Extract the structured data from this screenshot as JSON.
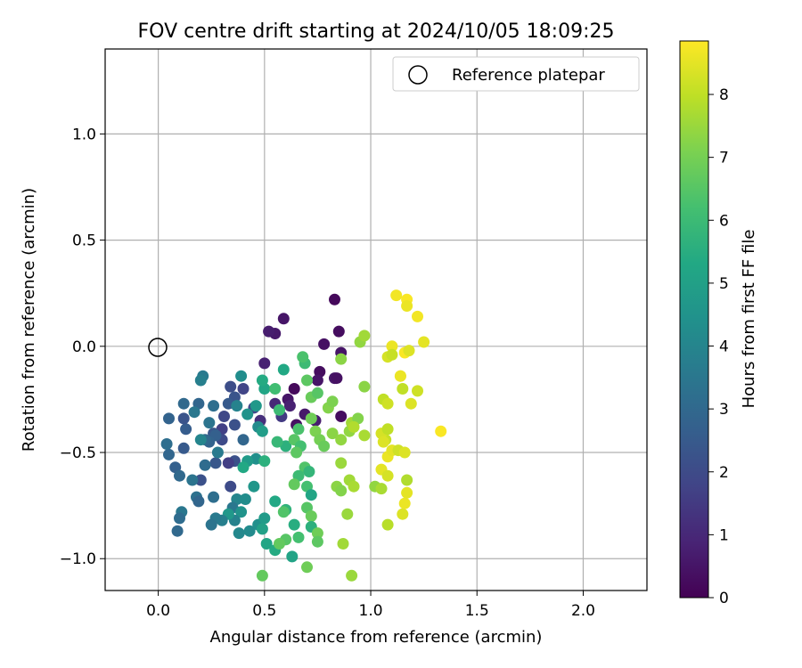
{
  "chart_data": {
    "type": "scatter",
    "title": "FOV centre drift starting at 2024/10/05 18:09:25",
    "xlabel": "Angular distance from reference (arcmin)",
    "ylabel": "Rotation from reference (arcmin)",
    "xlim": [
      -0.25,
      2.3
    ],
    "ylim": [
      -1.15,
      1.4
    ],
    "xticks": [
      0.0,
      0.5,
      1.0,
      1.5,
      2.0
    ],
    "xtick_labels": [
      "0.0",
      "0.5",
      "1.0",
      "1.5",
      "2.0"
    ],
    "yticks": [
      -1.0,
      -0.5,
      0.0,
      0.5,
      1.0
    ],
    "ytick_labels": [
      "−1.0",
      "−0.5",
      "0.0",
      "0.5",
      "1.0"
    ],
    "grid": true,
    "legend": {
      "position": "top-right",
      "label": "Reference platepar"
    },
    "reference_point": {
      "x": 0.0,
      "y": 0.0
    },
    "colorbar": {
      "label": "Hours from first FF file",
      "range": [
        0,
        8.85
      ],
      "ticks": [
        0,
        1,
        2,
        3,
        4,
        5,
        6,
        7,
        8
      ],
      "tick_labels": [
        "0",
        "1",
        "2",
        "3",
        "4",
        "5",
        "6",
        "7",
        "8"
      ],
      "colormap": "viridis"
    },
    "points": [
      [
        0.83,
        0.22,
        0.2
      ],
      [
        0.85,
        0.07,
        0.3
      ],
      [
        0.59,
        0.13,
        0.5
      ],
      [
        0.55,
        0.06,
        0.6
      ],
      [
        0.52,
        0.07,
        0.7
      ],
      [
        0.78,
        0.01,
        0.4
      ],
      [
        0.86,
        -0.03,
        0.5
      ],
      [
        0.5,
        -0.08,
        0.8
      ],
      [
        0.76,
        -0.12,
        0.3
      ],
      [
        0.75,
        -0.16,
        0.5
      ],
      [
        0.83,
        -0.15,
        0.6
      ],
      [
        0.84,
        -0.15,
        0.4
      ],
      [
        0.64,
        -0.2,
        0.2
      ],
      [
        0.61,
        -0.25,
        0.5
      ],
      [
        0.62,
        -0.28,
        0.8
      ],
      [
        0.69,
        -0.32,
        0.6
      ],
      [
        0.86,
        -0.33,
        0.3
      ],
      [
        0.65,
        -0.37,
        0.4
      ],
      [
        0.74,
        -0.35,
        0.7
      ],
      [
        0.58,
        -0.33,
        1.5
      ],
      [
        0.48,
        -0.35,
        1.2
      ],
      [
        0.55,
        -0.27,
        1.0
      ],
      [
        0.45,
        -0.29,
        1.9
      ],
      [
        0.4,
        -0.2,
        1.8
      ],
      [
        0.34,
        -0.19,
        2.1
      ],
      [
        0.36,
        -0.24,
        2.3
      ],
      [
        0.33,
        -0.27,
        2.5
      ],
      [
        0.31,
        -0.33,
        1.9
      ],
      [
        0.36,
        -0.37,
        2.2
      ],
      [
        0.3,
        -0.39,
        1.7
      ],
      [
        0.26,
        -0.41,
        2.4
      ],
      [
        0.3,
        -0.44,
        2.0
      ],
      [
        0.27,
        -0.42,
        2.7
      ],
      [
        0.24,
        -0.45,
        2.8
      ],
      [
        0.4,
        -0.44,
        2.9
      ],
      [
        0.36,
        -0.54,
        2.2
      ],
      [
        0.33,
        -0.55,
        1.6
      ],
      [
        0.27,
        -0.55,
        2.4
      ],
      [
        0.22,
        -0.56,
        3.1
      ],
      [
        0.2,
        -0.63,
        2.2
      ],
      [
        0.34,
        -0.66,
        2.0
      ],
      [
        0.16,
        -0.63,
        3.4
      ],
      [
        0.08,
        -0.57,
        2.7
      ],
      [
        0.1,
        -0.61,
        3.0
      ],
      [
        0.05,
        -0.51,
        2.9
      ],
      [
        0.12,
        -0.48,
        2.5
      ],
      [
        0.04,
        -0.46,
        3.2
      ],
      [
        0.13,
        -0.39,
        2.6
      ],
      [
        0.12,
        -0.34,
        2.3
      ],
      [
        0.05,
        -0.34,
        2.8
      ],
      [
        0.12,
        -0.27,
        3.0
      ],
      [
        0.19,
        -0.27,
        2.9
      ],
      [
        0.21,
        -0.14,
        3.6
      ],
      [
        0.2,
        -0.16,
        3.8
      ],
      [
        0.26,
        -0.28,
        3.2
      ],
      [
        0.24,
        -0.36,
        3.4
      ],
      [
        0.22,
        -0.44,
        3.0
      ],
      [
        0.28,
        -0.5,
        3.6
      ],
      [
        0.2,
        -0.44,
        4.0
      ],
      [
        0.17,
        -0.31,
        3.5
      ],
      [
        0.39,
        -0.14,
        4.3
      ],
      [
        0.37,
        -0.28,
        3.9
      ],
      [
        0.42,
        -0.32,
        4.5
      ],
      [
        0.46,
        -0.28,
        4.7
      ],
      [
        0.5,
        -0.2,
        5.2
      ],
      [
        0.49,
        -0.16,
        5.4
      ],
      [
        0.47,
        -0.38,
        4.2
      ],
      [
        0.49,
        -0.4,
        4.9
      ],
      [
        0.46,
        -0.53,
        4.4
      ],
      [
        0.42,
        -0.54,
        4.8
      ],
      [
        0.4,
        -0.57,
        5.3
      ],
      [
        0.5,
        -0.54,
        5.6
      ],
      [
        0.45,
        -0.66,
        4.6
      ],
      [
        0.37,
        -0.72,
        4.0
      ],
      [
        0.35,
        -0.76,
        3.5
      ],
      [
        0.41,
        -0.72,
        4.3
      ],
      [
        0.39,
        -0.78,
        4.5
      ],
      [
        0.36,
        -0.82,
        3.9
      ],
      [
        0.33,
        -0.79,
        4.7
      ],
      [
        0.3,
        -0.82,
        3.8
      ],
      [
        0.27,
        -0.81,
        3.6
      ],
      [
        0.25,
        -0.84,
        3.4
      ],
      [
        0.26,
        -0.71,
        3.2
      ],
      [
        0.18,
        -0.71,
        3.3
      ],
      [
        0.19,
        -0.73,
        2.9
      ],
      [
        0.11,
        -0.78,
        3.5
      ],
      [
        0.1,
        -0.81,
        3.1
      ],
      [
        0.09,
        -0.87,
        3.0
      ],
      [
        0.38,
        -0.88,
        4.1
      ],
      [
        0.43,
        -0.87,
        4.2
      ],
      [
        0.47,
        -0.84,
        4.4
      ],
      [
        0.5,
        -0.81,
        4.8
      ],
      [
        0.49,
        -0.86,
        5.0
      ],
      [
        0.51,
        -0.93,
        5.2
      ],
      [
        0.55,
        -0.96,
        5.4
      ],
      [
        0.63,
        -0.99,
        5.1
      ],
      [
        0.55,
        -0.73,
        5.3
      ],
      [
        0.6,
        -0.77,
        5.7
      ],
      [
        0.64,
        -0.84,
        5.5
      ],
      [
        0.6,
        -0.47,
        5.6
      ],
      [
        0.56,
        -0.45,
        5.9
      ],
      [
        0.57,
        -0.3,
        6.0
      ],
      [
        0.59,
        -0.11,
        5.3
      ],
      [
        0.55,
        -0.2,
        6.1
      ],
      [
        0.66,
        -0.39,
        6.3
      ],
      [
        0.64,
        -0.44,
        6.5
      ],
      [
        0.67,
        -0.47,
        6.2
      ],
      [
        0.65,
        -0.5,
        6.6
      ],
      [
        0.69,
        -0.57,
        6.4
      ],
      [
        0.71,
        -0.59,
        5.8
      ],
      [
        0.66,
        -0.61,
        6.0
      ],
      [
        0.64,
        -0.65,
        6.7
      ],
      [
        0.7,
        -0.66,
        6.2
      ],
      [
        0.72,
        -0.7,
        5.2
      ],
      [
        0.7,
        -0.76,
        6.5
      ],
      [
        0.72,
        -0.8,
        6.8
      ],
      [
        0.72,
        -0.85,
        5.6
      ],
      [
        0.75,
        -0.88,
        6.9
      ],
      [
        0.75,
        -0.92,
        6.6
      ],
      [
        0.6,
        -0.91,
        6.5
      ],
      [
        0.57,
        -0.93,
        6.7
      ],
      [
        0.66,
        -0.9,
        6.2
      ],
      [
        0.59,
        -0.78,
        6.4
      ],
      [
        0.7,
        -1.04,
        6.9
      ],
      [
        0.49,
        -1.08,
        6.7
      ],
      [
        0.69,
        -0.08,
        6.0
      ],
      [
        0.68,
        -0.05,
        6.3
      ],
      [
        0.7,
        -0.16,
        6.6
      ],
      [
        0.72,
        -0.24,
        6.8
      ],
      [
        0.75,
        -0.22,
        6.5
      ],
      [
        0.72,
        -0.34,
        6.9
      ],
      [
        0.74,
        -0.4,
        7.1
      ],
      [
        0.76,
        -0.44,
        7.0
      ],
      [
        0.78,
        -0.47,
        6.8
      ],
      [
        0.82,
        -0.41,
        7.3
      ],
      [
        0.8,
        -0.29,
        7.2
      ],
      [
        0.82,
        -0.26,
        7.1
      ],
      [
        0.86,
        -0.44,
        7.4
      ],
      [
        0.86,
        -0.55,
        7.5
      ],
      [
        0.84,
        -0.66,
        7.3
      ],
      [
        0.86,
        -0.68,
        7.2
      ],
      [
        0.9,
        -0.63,
        7.6
      ],
      [
        0.92,
        -0.66,
        7.7
      ],
      [
        0.89,
        -0.79,
        7.5
      ],
      [
        0.87,
        -0.93,
        7.6
      ],
      [
        0.91,
        -1.08,
        7.5
      ],
      [
        0.9,
        -0.4,
        7.4
      ],
      [
        0.91,
        -0.36,
        7.6
      ],
      [
        0.94,
        -0.34,
        7.2
      ],
      [
        0.97,
        -0.42,
        7.7
      ],
      [
        0.97,
        -0.19,
        7.3
      ],
      [
        0.95,
        0.02,
        7.4
      ],
      [
        0.97,
        0.05,
        7.6
      ],
      [
        0.86,
        -0.06,
        7.3
      ],
      [
        0.92,
        -0.38,
        7.8
      ],
      [
        1.02,
        -0.66,
        7.4
      ],
      [
        1.05,
        -0.67,
        7.7
      ],
      [
        1.06,
        -0.25,
        8.0
      ],
      [
        1.08,
        -0.27,
        8.2
      ],
      [
        1.07,
        -0.44,
        8.1
      ],
      [
        1.05,
        -0.41,
        8.3
      ],
      [
        1.08,
        -0.39,
        8.0
      ],
      [
        1.06,
        -0.45,
        8.4
      ],
      [
        1.05,
        -0.58,
        8.5
      ],
      [
        1.08,
        -0.61,
        8.3
      ],
      [
        1.08,
        -0.52,
        8.6
      ],
      [
        1.1,
        -0.49,
        8.5
      ],
      [
        1.13,
        -0.49,
        8.2
      ],
      [
        1.16,
        -0.5,
        8.4
      ],
      [
        1.08,
        -0.84,
        7.9
      ],
      [
        1.15,
        -0.79,
        8.4
      ],
      [
        1.16,
        -0.74,
        8.6
      ],
      [
        1.17,
        -0.69,
        8.5
      ],
      [
        1.17,
        -0.63,
        7.8
      ],
      [
        1.14,
        -0.14,
        8.7
      ],
      [
        1.15,
        -0.2,
        8.0
      ],
      [
        1.19,
        -0.27,
        8.4
      ],
      [
        1.22,
        -0.21,
        8.2
      ],
      [
        1.12,
        0.24,
        8.7
      ],
      [
        1.17,
        0.22,
        8.8
      ],
      [
        1.17,
        0.19,
        8.6
      ],
      [
        1.22,
        0.14,
        8.7
      ],
      [
        1.25,
        0.02,
        8.5
      ],
      [
        1.1,
        0.0,
        8.6
      ],
      [
        1.08,
        -0.05,
        8.3
      ],
      [
        1.1,
        -0.04,
        8.1
      ],
      [
        1.16,
        -0.03,
        8.8
      ],
      [
        1.18,
        -0.02,
        8.4
      ],
      [
        1.14,
        -0.14,
        8.6
      ],
      [
        1.33,
        -0.4,
        8.8
      ]
    ]
  }
}
